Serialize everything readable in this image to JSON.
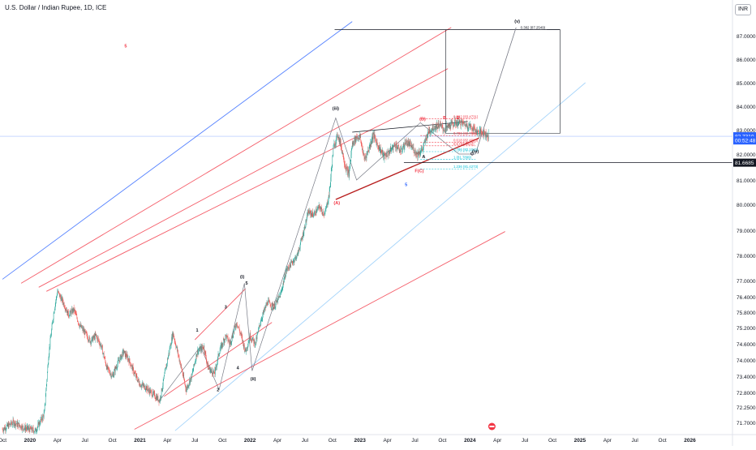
{
  "header": {
    "symbol_title": "U.S. Dollar / Indian Rupee, 1D, ICE",
    "currency_button": "INR"
  },
  "colors": {
    "up": "#26a69a",
    "down": "#ef5350",
    "channel_red": "#f23645",
    "channel_blue": "#2962ff",
    "channel_lightblue": "#90caf9",
    "wave_dark": "#131722",
    "fib_red": "#f23645",
    "fib_cyan": "#00bcd4"
  },
  "chart_data": {
    "type": "candlestick",
    "title": "U.S. Dollar / Indian Rupee, 1D, ICE",
    "currency": "INR",
    "x_tick_labels": [
      "Oct",
      "2020",
      "Apr",
      "Jul",
      "Oct",
      "2021",
      "Apr",
      "Jul",
      "Oct",
      "2022",
      "Apr",
      "Jul",
      "Oct",
      "2023",
      "Apr",
      "Jul",
      "Oct",
      "2024",
      "Apr",
      "Jul",
      "Oct",
      "2025",
      "Apr",
      "Jul",
      "Oct",
      "2026"
    ],
    "x_ticks_years": [
      2019.75,
      2020.0,
      2020.25,
      2020.5,
      2020.75,
      2021.0,
      2021.25,
      2021.5,
      2021.75,
      2022.0,
      2022.25,
      2022.5,
      2022.75,
      2023.0,
      2023.25,
      2023.5,
      2023.75,
      2024.0,
      2024.25,
      2024.5,
      2024.75,
      2025.0,
      2025.25,
      2025.5,
      2025.75,
      2026.0
    ],
    "y_tick_labels": [
      "87.0000",
      "86.0000",
      "85.0000",
      "84.0000",
      "83.0000",
      "82.0000",
      "81.0000",
      "80.0000",
      "79.0000",
      "78.0000",
      "77.0000",
      "76.4000",
      "75.8000",
      "75.2000",
      "74.6000",
      "74.0000",
      "73.4000",
      "72.8000",
      "72.2500",
      "71.7000"
    ],
    "y_ticks": [
      87.0,
      86.0,
      85.0,
      84.0,
      83.0,
      82.0,
      81.0,
      80.0,
      79.0,
      78.0,
      77.0,
      76.4,
      75.8,
      75.2,
      74.6,
      74.0,
      73.4,
      72.8,
      72.25,
      71.7
    ],
    "price_tags": [
      {
        "label": "82.7310",
        "value": 82.731,
        "color": "#2962ff"
      },
      {
        "label": "00:52:48",
        "value": 82.56,
        "color": "#2962ff"
      },
      {
        "label": "81.6685",
        "value": 81.6685,
        "color": "#131722"
      }
    ],
    "close_path": [
      [
        2019.75,
        71.45
      ],
      [
        2019.85,
        71.7
      ],
      [
        2019.95,
        71.5
      ],
      [
        2020.05,
        71.4
      ],
      [
        2020.13,
        72.0
      ],
      [
        2020.17,
        74.2
      ],
      [
        2020.22,
        75.9
      ],
      [
        2020.25,
        76.6
      ],
      [
        2020.3,
        76.2
      ],
      [
        2020.35,
        75.7
      ],
      [
        2020.4,
        75.9
      ],
      [
        2020.45,
        75.3
      ],
      [
        2020.5,
        75.0
      ],
      [
        2020.55,
        74.7
      ],
      [
        2020.6,
        74.9
      ],
      [
        2020.65,
        74.5
      ],
      [
        2020.7,
        73.7
      ],
      [
        2020.75,
        73.4
      ],
      [
        2020.8,
        73.9
      ],
      [
        2020.85,
        74.3
      ],
      [
        2020.9,
        74.0
      ],
      [
        2020.95,
        73.5
      ],
      [
        2021.0,
        73.1
      ],
      [
        2021.05,
        73.0
      ],
      [
        2021.1,
        72.8
      ],
      [
        2021.18,
        72.5
      ],
      [
        2021.25,
        74.0
      ],
      [
        2021.3,
        75.0
      ],
      [
        2021.36,
        74.0
      ],
      [
        2021.42,
        72.9
      ],
      [
        2021.47,
        73.4
      ],
      [
        2021.52,
        74.3
      ],
      [
        2021.58,
        74.5
      ],
      [
        2021.62,
        73.7
      ],
      [
        2021.68,
        73.5
      ],
      [
        2021.72,
        74.3
      ],
      [
        2021.78,
        74.9
      ],
      [
        2021.82,
        74.6
      ],
      [
        2021.88,
        75.4
      ],
      [
        2021.92,
        74.9
      ],
      [
        2021.96,
        74.3
      ],
      [
        2022.0,
        74.9
      ],
      [
        2022.05,
        74.6
      ],
      [
        2022.1,
        75.5
      ],
      [
        2022.16,
        76.2
      ],
      [
        2022.22,
        76.0
      ],
      [
        2022.28,
        76.5
      ],
      [
        2022.33,
        77.4
      ],
      [
        2022.38,
        77.7
      ],
      [
        2022.43,
        78.0
      ],
      [
        2022.48,
        78.8
      ],
      [
        2022.53,
        79.7
      ],
      [
        2022.58,
        79.6
      ],
      [
        2022.63,
        79.9
      ],
      [
        2022.68,
        79.6
      ],
      [
        2022.72,
        80.4
      ],
      [
        2022.76,
        82.3
      ],
      [
        2022.8,
        82.8
      ],
      [
        2022.83,
        82.3
      ],
      [
        2022.87,
        81.5
      ],
      [
        2022.9,
        81.2
      ],
      [
        2022.93,
        82.4
      ],
      [
        2022.97,
        82.7
      ],
      [
        2023.0,
        82.7
      ],
      [
        2023.04,
        81.8
      ],
      [
        2023.08,
        82.2
      ],
      [
        2023.12,
        82.8
      ],
      [
        2023.17,
        82.3
      ],
      [
        2023.22,
        81.9
      ],
      [
        2023.27,
        82.1
      ],
      [
        2023.32,
        82.4
      ],
      [
        2023.37,
        82.1
      ],
      [
        2023.42,
        82.5
      ],
      [
        2023.47,
        82.3
      ],
      [
        2023.52,
        82.0
      ],
      [
        2023.57,
        82.2
      ],
      [
        2023.62,
        82.9
      ],
      [
        2023.67,
        83.1
      ],
      [
        2023.72,
        83.2
      ],
      [
        2023.77,
        83.0
      ],
      [
        2023.82,
        83.2
      ],
      [
        2023.87,
        83.3
      ],
      [
        2023.92,
        83.3
      ],
      [
        2023.97,
        83.2
      ],
      [
        2024.02,
        83.1
      ],
      [
        2024.07,
        82.9
      ],
      [
        2024.12,
        82.9
      ],
      [
        2024.17,
        82.73
      ]
    ],
    "channels": [
      {
        "name": "blue-outer-upper",
        "color": "#2962ff",
        "points": [
          [
            2019.75,
            77.05
          ],
          [
            2022.93,
            87.6
          ]
        ]
      },
      {
        "name": "blue-outer-lower",
        "color": "#90caf9",
        "points": [
          [
            2021.32,
            71.4
          ],
          [
            2025.05,
            85.0
          ]
        ]
      },
      {
        "name": "red-upper-1",
        "color": "#f23645",
        "points": [
          [
            2019.92,
            76.9
          ],
          [
            2023.83,
            87.35
          ]
        ]
      },
      {
        "name": "red-upper-2",
        "color": "#f23645",
        "points": [
          [
            2020.08,
            76.75
          ],
          [
            2023.8,
            85.6
          ]
        ]
      },
      {
        "name": "red-mid",
        "color": "#f23645",
        "points": [
          [
            2020.15,
            76.6
          ],
          [
            2023.55,
            84.05
          ]
        ]
      },
      {
        "name": "red-lower",
        "color": "#f23645",
        "points": [
          [
            2020.95,
            71.45
          ],
          [
            2024.32,
            78.95
          ]
        ]
      },
      {
        "name": "red-inner-upper",
        "color": "#f23645",
        "points": [
          [
            2021.5,
            74.75
          ],
          [
            2021.96,
            76.7
          ]
        ]
      },
      {
        "name": "red-inner-lower",
        "color": "#f23645",
        "points": [
          [
            2021.22,
            72.65
          ],
          [
            2022.2,
            75.4
          ]
        ]
      }
    ],
    "wave_labels": [
      {
        "text": "(v)",
        "x": 2024.43,
        "y": 87.55,
        "color": "#131722"
      },
      {
        "text": "(iii)",
        "x": 2022.78,
        "y": 83.85,
        "color": "#131722"
      },
      {
        "text": "(i)",
        "x": 2021.93,
        "y": 77.1,
        "color": "#131722"
      },
      {
        "text": "(ii)",
        "x": 2022.03,
        "y": 73.25,
        "color": "#131722"
      },
      {
        "text": "1",
        "x": 2021.52,
        "y": 75.05,
        "color": "#131722"
      },
      {
        "text": "2",
        "x": 2021.71,
        "y": 72.85,
        "color": "#131722"
      },
      {
        "text": "3",
        "x": 2021.78,
        "y": 75.95,
        "color": "#131722"
      },
      {
        "text": "4",
        "x": 2021.89,
        "y": 73.65,
        "color": "#131722"
      },
      {
        "text": "5",
        "x": 2021.97,
        "y": 76.85,
        "color": "#131722"
      },
      {
        "text": "(A)",
        "x": 2022.79,
        "y": 80.0,
        "color": "#f23645"
      },
      {
        "text": "(B)",
        "x": 2023.57,
        "y": 83.4,
        "color": "#f23645"
      },
      {
        "text": "B",
        "x": 2023.77,
        "y": 83.45,
        "color": "#f23645"
      },
      {
        "text": "E",
        "x": 2023.89,
        "y": 83.45,
        "color": "#f23645"
      },
      {
        "text": "A",
        "x": 2023.58,
        "y": 81.85,
        "color": "#131722"
      },
      {
        "text": "C",
        "x": 2024.02,
        "y": 81.95,
        "color": "#131722"
      },
      {
        "text": "F(C)",
        "x": 2023.54,
        "y": 81.3,
        "color": "#f23645"
      },
      {
        "text": "5",
        "x": 2023.42,
        "y": 80.75,
        "color": "#2962ff"
      },
      {
        "text": "(iv)",
        "x": 2024.05,
        "y": 82.05,
        "color": "#131722"
      },
      {
        "text": "5",
        "x": 2020.87,
        "y": 86.5,
        "color": "#f23645"
      }
    ],
    "fib_levels": [
      {
        "label": "0.382 (87.2549)",
        "value": 87.2549,
        "color": "#131722"
      },
      {
        "label": "0.382 (83.4731)",
        "value": 83.4731,
        "color": "#f23645"
      },
      {
        "label": "0.786 (82.7599)",
        "value": 82.76,
        "color": "#f23645"
      },
      {
        "label": "0.618 (82.4925)",
        "value": 82.49,
        "color": "#f23645"
      },
      {
        "label": "0.5 (82.3422)",
        "value": 82.34,
        "color": "#f23645"
      },
      {
        "label": "0.786 (82.1041)",
        "value": 82.1,
        "color": "#00bcd4"
      },
      {
        "label": "1 (81.7899)",
        "value": 81.79,
        "color": "#00bcd4"
      },
      {
        "label": "1.236 (81.4273)",
        "value": 81.43,
        "color": "#00bcd4"
      }
    ]
  }
}
